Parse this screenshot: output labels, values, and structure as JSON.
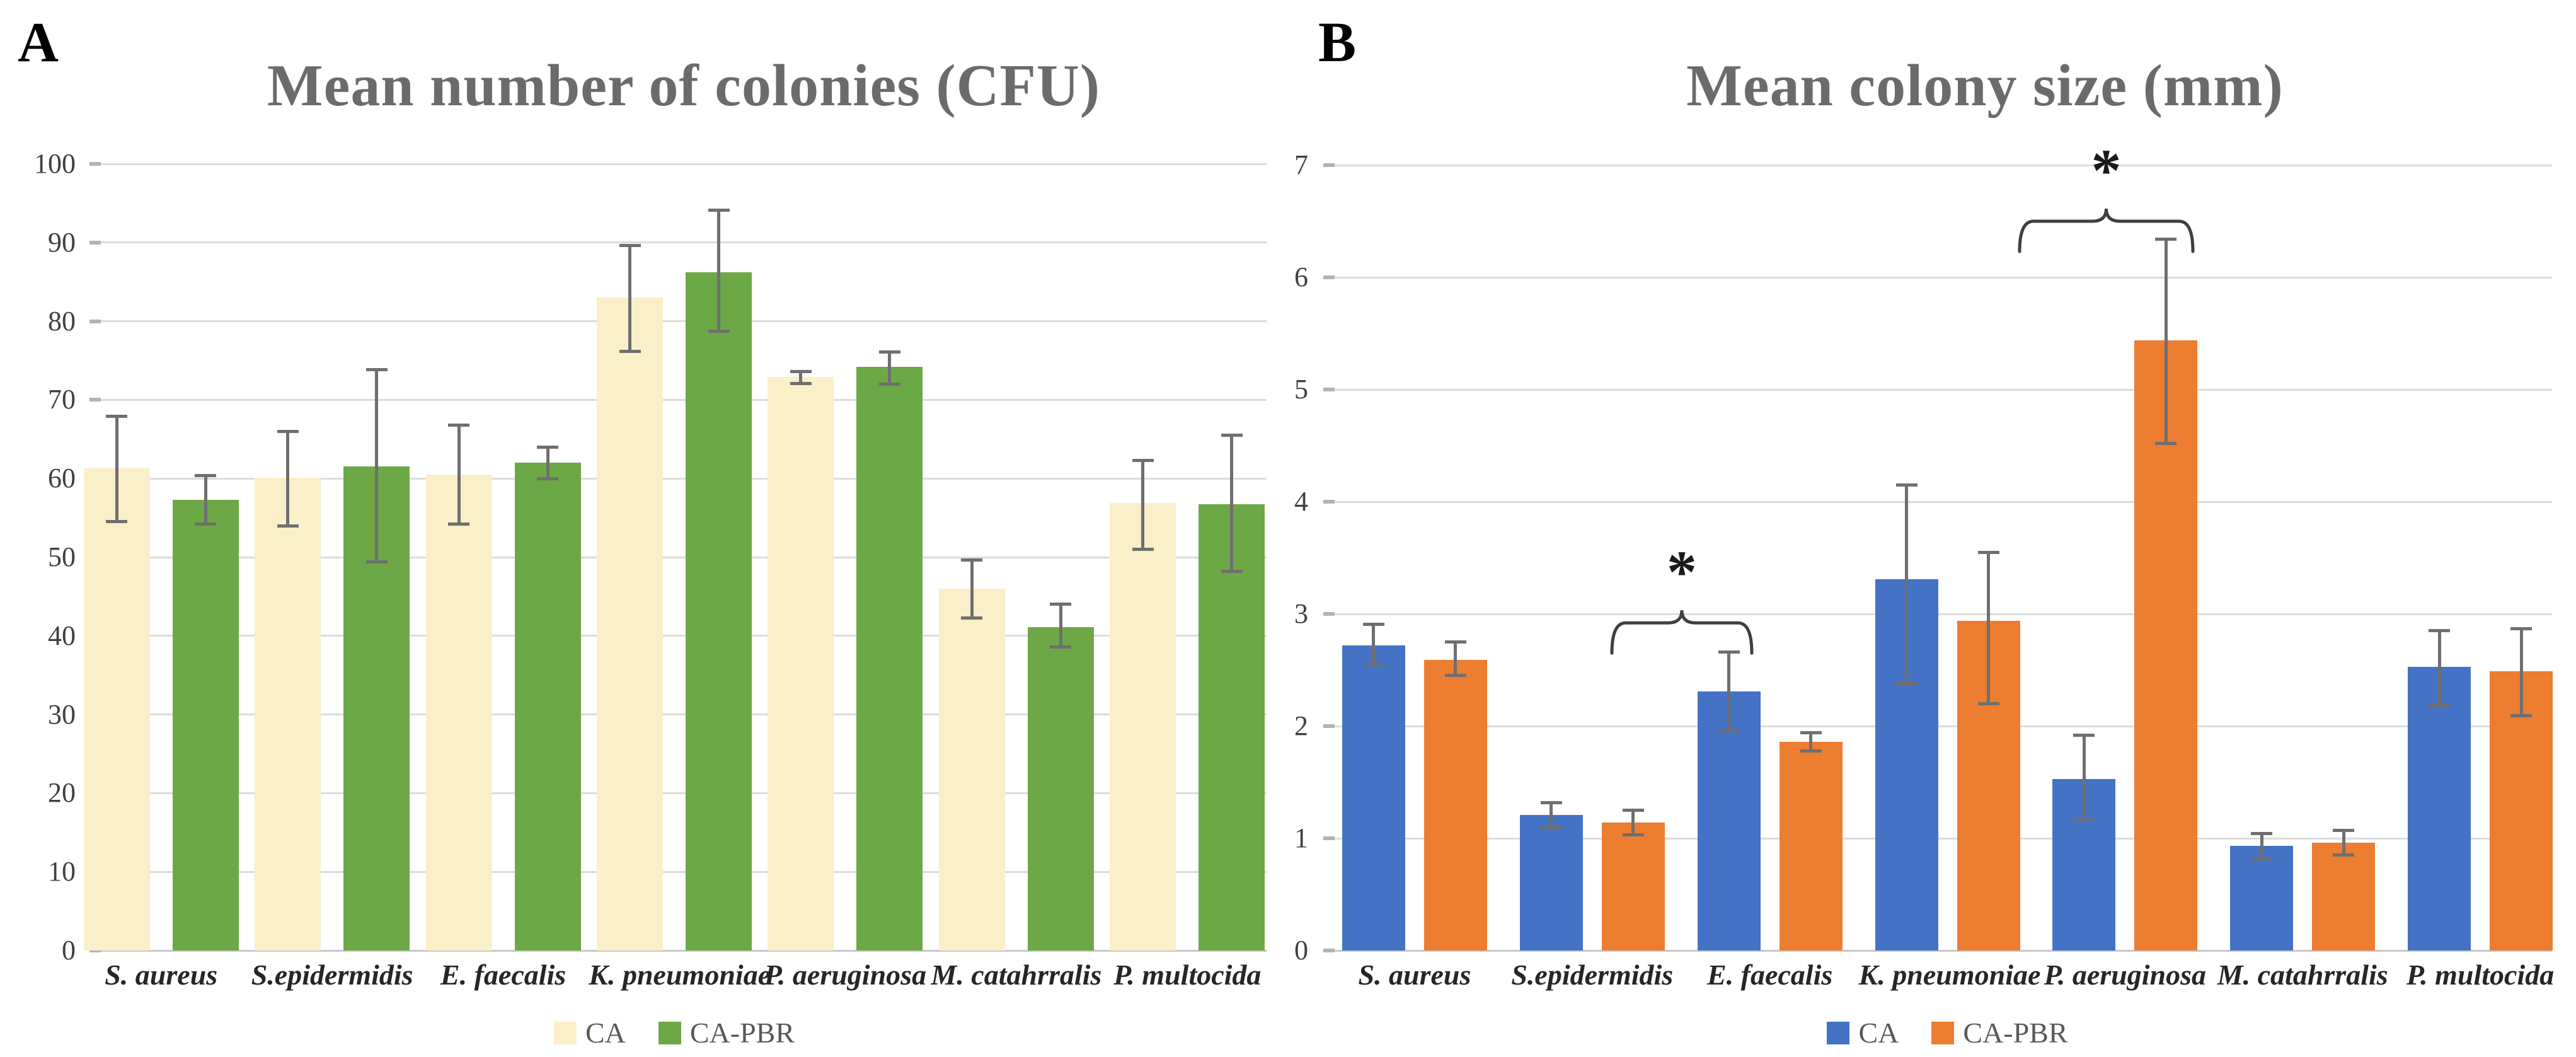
{
  "figure": {
    "background": "#ffffff",
    "gridline_color": "#dcdcdc",
    "error_bar_color": "#6f6f6f"
  },
  "chart_data": [
    {
      "type": "bar",
      "panel_label": "A",
      "title": "Mean number of colonies (CFU)",
      "xlabel": "",
      "ylabel": "",
      "ylim": [
        0,
        100
      ],
      "ytick_step": 10,
      "grid": true,
      "legend_position": "bottom-center",
      "categories": [
        "S. aureus",
        "S.epidermidis",
        "E. faecalis",
        "K. pneumoniae",
        "P. aeruginosa",
        "M. catahrralis",
        "P. multocida"
      ],
      "series": [
        {
          "name": "CA",
          "color": "#FAEFC9",
          "values": [
            61.3,
            60.1,
            60.5,
            83.0,
            72.9,
            46.0,
            56.9
          ],
          "error_high": [
            67.9,
            66.0,
            66.8,
            89.6,
            73.6,
            49.6,
            62.3
          ],
          "error_low": [
            54.5,
            54.0,
            54.2,
            76.2,
            72.1,
            42.3,
            51.0
          ]
        },
        {
          "name": "CA-PBR",
          "color": "#6DA846",
          "values": [
            57.3,
            61.5,
            62.0,
            86.2,
            74.2,
            41.1,
            56.7
          ],
          "error_high": [
            60.4,
            73.8,
            64.0,
            94.1,
            76.1,
            44.0,
            65.5
          ],
          "error_low": [
            54.2,
            49.4,
            60.0,
            78.7,
            72.0,
            38.6,
            48.2
          ]
        }
      ],
      "significance": []
    },
    {
      "type": "bar",
      "panel_label": "B",
      "title": "Mean colony size (mm)",
      "xlabel": "",
      "ylabel": "",
      "ylim": [
        0,
        7
      ],
      "ytick_step": 1,
      "grid": true,
      "legend_position": "bottom-center",
      "categories": [
        "S. aureus",
        "S.epidermidis",
        "E. faecalis",
        "K. pneumoniae",
        "P. aeruginosa",
        "M. catahrralis",
        "P. multocida"
      ],
      "series": [
        {
          "name": "CA",
          "color": "#4472C4",
          "values": [
            2.72,
            1.21,
            2.31,
            3.31,
            1.53,
            0.93,
            2.53
          ],
          "error_high": [
            2.91,
            1.32,
            2.66,
            4.15,
            1.92,
            1.04,
            2.85
          ],
          "error_low": [
            2.55,
            1.1,
            1.96,
            2.38,
            1.16,
            0.82,
            2.18
          ]
        },
        {
          "name": "CA-PBR",
          "color": "#ED7D31",
          "values": [
            2.59,
            1.14,
            1.86,
            2.94,
            5.44,
            0.96,
            2.49
          ],
          "error_high": [
            2.75,
            1.25,
            1.94,
            3.55,
            6.34,
            1.07,
            2.87
          ],
          "error_low": [
            2.45,
            1.03,
            1.78,
            2.2,
            4.52,
            0.85,
            2.09
          ]
        }
      ],
      "significance": [
        {
          "symbol": "*",
          "category": "E. faecalis",
          "x_from": 2558,
          "x_to": 2780,
          "y_value": 2.92
        },
        {
          "symbol": "*",
          "category": "P. aeruginosa",
          "x_from": 3205,
          "x_to": 3480,
          "y_value": 6.5
        }
      ]
    }
  ]
}
